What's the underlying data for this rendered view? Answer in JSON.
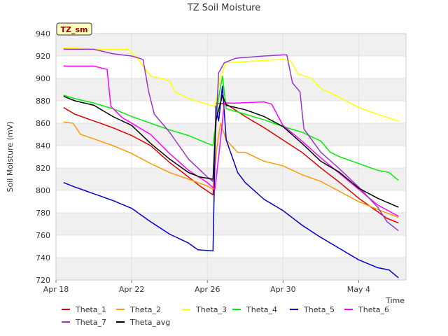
{
  "chart_data": {
    "type": "line",
    "title": "TZ Soil Moisture",
    "site_badge": "TZ_sm",
    "xlabel": "Time",
    "ylabel": "Soil Moisture (mV)",
    "ylim": [
      720,
      940
    ],
    "yticks": [
      720,
      740,
      760,
      780,
      800,
      820,
      840,
      860,
      880,
      900,
      920,
      940
    ],
    "xlim": [
      0,
      18.5
    ],
    "xticks": [
      {
        "value": 0,
        "label": "Apr 18"
      },
      {
        "value": 4,
        "label": "Apr 22"
      },
      {
        "value": 8,
        "label": "Apr 26"
      },
      {
        "value": 12,
        "label": "Apr 30"
      },
      {
        "value": 16,
        "label": "May 4"
      }
    ],
    "grid": true,
    "legend_position": "bottom",
    "series": [
      {
        "name": "Theta_1",
        "color": "#dd0000",
        "points": [
          [
            0.4,
            874
          ],
          [
            1,
            868
          ],
          [
            2,
            862
          ],
          [
            3,
            856
          ],
          [
            4,
            849
          ],
          [
            5,
            840
          ],
          [
            6,
            825
          ],
          [
            7,
            812
          ],
          [
            7.6,
            804
          ],
          [
            8.3,
            796
          ],
          [
            8.5,
            878
          ],
          [
            9,
            877
          ],
          [
            10,
            866
          ],
          [
            11,
            856
          ],
          [
            12,
            845
          ],
          [
            13,
            834
          ],
          [
            14,
            820
          ],
          [
            15,
            807
          ],
          [
            16,
            793
          ],
          [
            17,
            781
          ],
          [
            17.5,
            775
          ],
          [
            18.1,
            771
          ]
        ]
      },
      {
        "name": "Theta_2",
        "color": "#ff9900",
        "points": [
          [
            0.4,
            861
          ],
          [
            0.9,
            860
          ],
          [
            1.3,
            850
          ],
          [
            2,
            846
          ],
          [
            3,
            840
          ],
          [
            4,
            833
          ],
          [
            5,
            824
          ],
          [
            6,
            816
          ],
          [
            7,
            810
          ],
          [
            8,
            804
          ],
          [
            8.3,
            801
          ],
          [
            8.5,
            838
          ],
          [
            8.7,
            860
          ],
          [
            9,
            845
          ],
          [
            9.6,
            834
          ],
          [
            10,
            834
          ],
          [
            11,
            826
          ],
          [
            12,
            822
          ],
          [
            13,
            814
          ],
          [
            14,
            808
          ],
          [
            15,
            799
          ],
          [
            16,
            790
          ],
          [
            17,
            783
          ],
          [
            18.1,
            776
          ]
        ]
      },
      {
        "name": "Theta_3",
        "color": "#ffff00",
        "points": [
          [
            0.4,
            927
          ],
          [
            1,
            927
          ],
          [
            2,
            926
          ],
          [
            3,
            926
          ],
          [
            3.8,
            926
          ],
          [
            4.3,
            918
          ],
          [
            5,
            902
          ],
          [
            6,
            898
          ],
          [
            6.3,
            888
          ],
          [
            7,
            882
          ],
          [
            8,
            877
          ],
          [
            8.4,
            875
          ],
          [
            8.7,
            902
          ],
          [
            9,
            914
          ],
          [
            10,
            915
          ],
          [
            11,
            916
          ],
          [
            12,
            917
          ],
          [
            12.4,
            916
          ],
          [
            12.8,
            904
          ],
          [
            13.5,
            900
          ],
          [
            14,
            891
          ],
          [
            15,
            883
          ],
          [
            16,
            874
          ],
          [
            17,
            868
          ],
          [
            18.1,
            862
          ]
        ]
      },
      {
        "name": "Theta_4",
        "color": "#00ee00",
        "points": [
          [
            0.4,
            885
          ],
          [
            1,
            882
          ],
          [
            2,
            878
          ],
          [
            3,
            873
          ],
          [
            4,
            866
          ],
          [
            5,
            860
          ],
          [
            6,
            854
          ],
          [
            7,
            849
          ],
          [
            8,
            842
          ],
          [
            8.3,
            840
          ],
          [
            8.6,
            883
          ],
          [
            8.8,
            902
          ],
          [
            9,
            873
          ],
          [
            10,
            868
          ],
          [
            11,
            863
          ],
          [
            12,
            857
          ],
          [
            13,
            852
          ],
          [
            14,
            844
          ],
          [
            14.5,
            834
          ],
          [
            15,
            830
          ],
          [
            16,
            824
          ],
          [
            17,
            818
          ],
          [
            17.6,
            816
          ],
          [
            18.1,
            809
          ]
        ]
      },
      {
        "name": "Theta_5",
        "color": "#0000cc",
        "points": [
          [
            0.4,
            807
          ],
          [
            1,
            803
          ],
          [
            2,
            797
          ],
          [
            3,
            791
          ],
          [
            4,
            784
          ],
          [
            5,
            772
          ],
          [
            6,
            761
          ],
          [
            7,
            753
          ],
          [
            7.5,
            747
          ],
          [
            8.3,
            746
          ],
          [
            8.45,
            875
          ],
          [
            8.6,
            862
          ],
          [
            8.8,
            893
          ],
          [
            9,
            845
          ],
          [
            9.6,
            816
          ],
          [
            10,
            807
          ],
          [
            11,
            792
          ],
          [
            12,
            782
          ],
          [
            13,
            769
          ],
          [
            14,
            758
          ],
          [
            15,
            748
          ],
          [
            16,
            738
          ],
          [
            17,
            731
          ],
          [
            17.6,
            729
          ],
          [
            18.1,
            722
          ]
        ]
      },
      {
        "name": "Theta_6",
        "color": "#ff00ff",
        "points": [
          [
            0.4,
            911
          ],
          [
            1,
            911
          ],
          [
            2,
            911
          ],
          [
            2.7,
            908
          ],
          [
            2.9,
            875
          ],
          [
            3.5,
            865
          ],
          [
            4,
            860
          ],
          [
            5,
            850
          ],
          [
            6,
            833
          ],
          [
            7,
            818
          ],
          [
            8,
            807
          ],
          [
            8.4,
            801
          ],
          [
            8.6,
            830
          ],
          [
            8.9,
            878
          ],
          [
            9.5,
            878
          ],
          [
            11,
            879
          ],
          [
            11.4,
            877
          ],
          [
            12,
            858
          ],
          [
            13,
            844
          ],
          [
            14,
            829
          ],
          [
            15,
            815
          ],
          [
            16,
            801
          ],
          [
            17,
            787
          ],
          [
            18.1,
            777
          ]
        ]
      },
      {
        "name": "Theta_7",
        "color": "#9933cc",
        "points": [
          [
            0.4,
            926
          ],
          [
            1,
            926
          ],
          [
            2,
            926
          ],
          [
            3,
            922
          ],
          [
            4,
            920
          ],
          [
            4.6,
            917
          ],
          [
            4.9,
            888
          ],
          [
            5.2,
            868
          ],
          [
            6,
            852
          ],
          [
            7,
            828
          ],
          [
            8,
            812
          ],
          [
            8.3,
            808
          ],
          [
            8.6,
            905
          ],
          [
            8.9,
            914
          ],
          [
            9.5,
            918
          ],
          [
            11,
            920
          ],
          [
            12,
            921
          ],
          [
            12.2,
            921
          ],
          [
            12.5,
            896
          ],
          [
            12.9,
            888
          ],
          [
            13.1,
            855
          ],
          [
            14,
            834
          ],
          [
            15,
            819
          ],
          [
            16,
            803
          ],
          [
            17,
            785
          ],
          [
            17.5,
            772
          ],
          [
            18.1,
            764
          ]
        ]
      },
      {
        "name": "Theta_avg",
        "color": "#000000",
        "points": [
          [
            0.4,
            884
          ],
          [
            1,
            880
          ],
          [
            2,
            876
          ],
          [
            3,
            866
          ],
          [
            4,
            858
          ],
          [
            5,
            842
          ],
          [
            6,
            828
          ],
          [
            7,
            816
          ],
          [
            7.6,
            812
          ],
          [
            8.3,
            810
          ],
          [
            8.45,
            862
          ],
          [
            8.6,
            872
          ],
          [
            8.8,
            885
          ],
          [
            9,
            876
          ],
          [
            10,
            872
          ],
          [
            11,
            866
          ],
          [
            12,
            857
          ],
          [
            13,
            842
          ],
          [
            14,
            826
          ],
          [
            15,
            816
          ],
          [
            16,
            802
          ],
          [
            17,
            793
          ],
          [
            18.1,
            785
          ]
        ]
      }
    ]
  }
}
